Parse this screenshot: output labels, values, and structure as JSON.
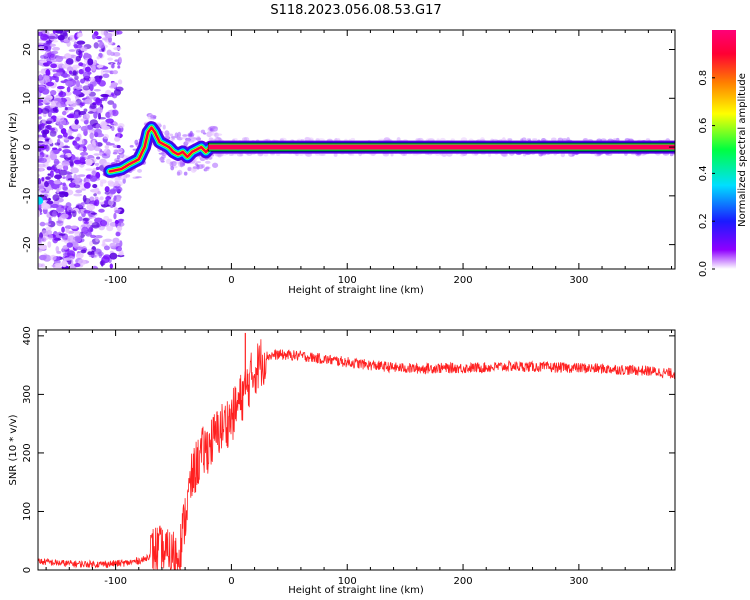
{
  "title": "S118.2023.056.08.53.G17",
  "chart_data": [
    {
      "type": "heatmap",
      "xlabel": "Height of straight line (km)",
      "ylabel": "Frequency (Hz)",
      "xlim": [
        -167,
        383
      ],
      "ylim": [
        -25,
        24
      ],
      "x_ticks": [
        -100,
        0,
        100,
        200,
        300
      ],
      "y_ticks": [
        -20,
        -10,
        0,
        10,
        20
      ],
      "colorbar": {
        "label": "Normalized spectral amplitude",
        "range": [
          0,
          1
        ],
        "ticks": [
          "0.0",
          "0.2",
          "0.4",
          "0.6",
          "0.8"
        ],
        "colormap": [
          "#ffffff",
          "#8f00ff",
          "#1a1aff",
          "#00dfff",
          "#00ff40",
          "#ffff00",
          "#ff7f00",
          "#ff0033",
          "#ff0077"
        ]
      },
      "ridge": {
        "x": [
          -105,
          -95,
          -88,
          -80,
          -75,
          -72,
          -69,
          -66,
          -62,
          -58,
          -54,
          -50,
          -46,
          -42,
          -38,
          -34,
          -30,
          -26,
          -22,
          -18,
          383
        ],
        "y": [
          -5,
          -4.5,
          -3.5,
          -2.5,
          0,
          3,
          4,
          3,
          1,
          0.5,
          0,
          -1,
          -1.5,
          -1,
          -2,
          -1,
          -0.5,
          0,
          -1,
          0,
          0
        ],
        "amplitude": 0.85
      }
    },
    {
      "type": "line",
      "xlabel": "Height of straight line (km)",
      "ylabel": "SNR (10 * v/v)",
      "xlim": [
        -167,
        383
      ],
      "ylim": [
        0,
        410
      ],
      "x_ticks": [
        -100,
        0,
        100,
        200,
        300
      ],
      "y_ticks": [
        0,
        100,
        200,
        300,
        400
      ],
      "color": "#ff2020",
      "series": [
        {
          "x": [
            -167,
            -150,
            -130,
            -110,
            -90,
            -75,
            -65,
            -55,
            -45,
            -40,
            -35,
            -30,
            -25,
            -20,
            -15,
            -10,
            -5,
            0,
            5,
            10,
            15,
            20,
            25,
            30,
            40,
            60,
            80,
            100,
            120,
            140,
            160,
            180,
            200,
            220,
            240,
            260,
            280,
            300,
            320,
            340,
            360,
            383
          ],
          "y": [
            15,
            12,
            10,
            10,
            12,
            18,
            35,
            25,
            28,
            90,
            150,
            180,
            200,
            210,
            225,
            240,
            250,
            260,
            280,
            300,
            320,
            340,
            355,
            365,
            368,
            366,
            360,
            355,
            350,
            346,
            344,
            345,
            345,
            346,
            348,
            347,
            346,
            345,
            344,
            342,
            340,
            335
          ]
        }
      ],
      "annotations": [
        {
          "x": 12,
          "y": 405,
          "note": "spike"
        }
      ]
    }
  ]
}
